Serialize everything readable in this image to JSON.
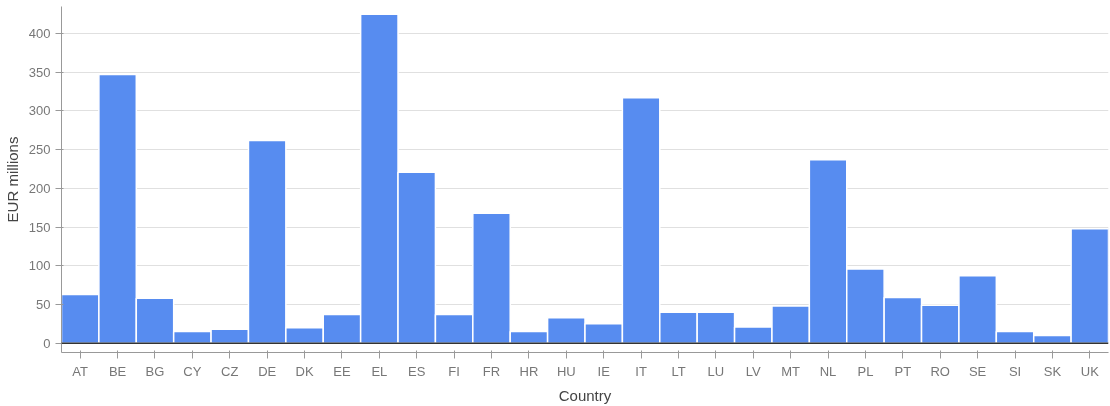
{
  "chart_data": {
    "type": "bar",
    "xlabel": "Country",
    "ylabel": "EUR millions",
    "categories": [
      "AT",
      "BE",
      "BG",
      "CY",
      "CZ",
      "DE",
      "DK",
      "EE",
      "EL",
      "ES",
      "FI",
      "FR",
      "HR",
      "HU",
      "IE",
      "IT",
      "LT",
      "LU",
      "LV",
      "MT",
      "NL",
      "PL",
      "PT",
      "RO",
      "SE",
      "SI",
      "SK",
      "UK"
    ],
    "values": [
      63,
      347,
      58,
      15,
      18,
      262,
      20,
      37,
      425,
      221,
      37,
      168,
      15,
      33,
      25,
      317,
      40,
      40,
      21,
      48,
      237,
      96,
      59,
      49,
      87,
      15,
      10,
      148
    ],
    "color": "#578cf0",
    "ylim": [
      -12,
      435
    ],
    "yticks": [
      0,
      50,
      100,
      150,
      200,
      250,
      300,
      350,
      400
    ],
    "grid": "y"
  }
}
